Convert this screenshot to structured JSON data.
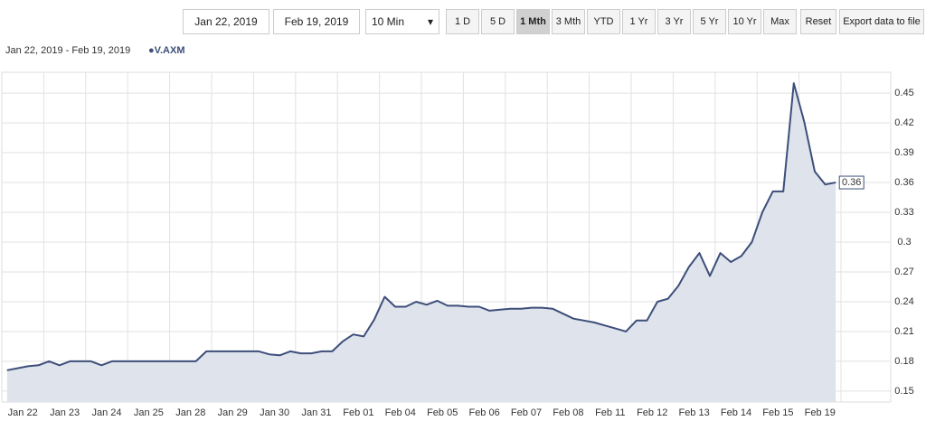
{
  "toolbar": {
    "start_date": "Jan 22, 2019",
    "end_date": "Feb 19, 2019",
    "interval": "10 Min",
    "ranges": [
      "1 D",
      "5 D",
      "1 Mth",
      "3 Mth",
      "YTD",
      "1 Yr",
      "3 Yr",
      "5 Yr",
      "10 Yr",
      "Max"
    ],
    "active_range": "1 Mth",
    "reset": "Reset",
    "export": "Export data to file"
  },
  "chart_data": {
    "type": "line",
    "subtitle": "Jan 22, 2019 - Feb 19, 2019",
    "categories": [
      "Jan 22",
      null,
      null,
      null,
      "Jan 23",
      null,
      null,
      null,
      "Jan 24",
      null,
      null,
      null,
      "Jan 25",
      null,
      null,
      null,
      "Jan 28",
      null,
      null,
      null,
      "Jan 29",
      null,
      null,
      null,
      "Jan 30",
      null,
      null,
      null,
      "Jan 31",
      null,
      null,
      null,
      "Feb 01",
      null,
      null,
      null,
      "Feb 04",
      null,
      null,
      null,
      "Feb 05",
      null,
      null,
      null,
      "Feb 06",
      null,
      null,
      null,
      "Feb 07",
      null,
      null,
      null,
      "Feb 08",
      null,
      null,
      null,
      "Feb 11",
      null,
      null,
      null,
      "Feb 12",
      null,
      null,
      null,
      "Feb 13",
      null,
      null,
      null,
      "Feb 14",
      null,
      null,
      null,
      "Feb 15",
      null,
      null,
      null,
      "Feb 19",
      null,
      null,
      null
    ],
    "series": [
      {
        "name": "V.AXM",
        "color": "#3d4e7a",
        "values": [
          0.171,
          0.173,
          0.175,
          0.176,
          0.18,
          0.176,
          0.18,
          0.18,
          0.18,
          0.176,
          0.18,
          0.18,
          0.18,
          0.18,
          0.18,
          0.18,
          0.18,
          0.18,
          0.18,
          0.19,
          0.19,
          0.19,
          0.19,
          0.19,
          0.19,
          0.187,
          0.186,
          0.19,
          0.188,
          0.188,
          0.19,
          0.19,
          0.2,
          0.207,
          0.205,
          0.222,
          0.245,
          0.235,
          0.235,
          0.24,
          0.237,
          0.241,
          0.236,
          0.236,
          0.235,
          0.235,
          0.231,
          0.232,
          0.233,
          0.233,
          0.234,
          0.234,
          0.233,
          0.228,
          0.223,
          0.221,
          0.219,
          0.216,
          0.213,
          0.21,
          0.221,
          0.221,
          0.24,
          0.243,
          0.256,
          0.275,
          0.289,
          0.266,
          0.289,
          0.28,
          0.286,
          0.3,
          0.33,
          0.351,
          0.351,
          0.46,
          0.421,
          0.371,
          0.358,
          0.36
        ]
      }
    ],
    "ylim": [
      0.139,
      0.471
    ],
    "yticks": [
      0.15,
      0.18,
      0.21,
      0.24,
      0.27,
      0.3,
      0.33,
      0.36,
      0.39,
      0.42,
      0.45
    ],
    "grid": true,
    "fill": "#dfe4ec"
  }
}
